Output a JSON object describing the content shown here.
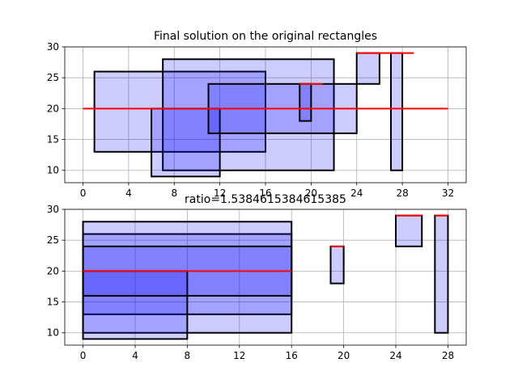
{
  "chart_data": [
    {
      "type": "rectangles",
      "title": "Final solution on the original rectangles",
      "xlim": [
        -1.6,
        33.6
      ],
      "ylim": [
        8,
        30
      ],
      "xticks": [
        0,
        4,
        8,
        12,
        16,
        20,
        24,
        28,
        32
      ],
      "yticks": [
        10,
        15,
        20,
        25,
        30
      ],
      "grid": true,
      "rects": [
        {
          "x0": 1,
          "x1": 16,
          "y0": 13,
          "y1": 26
        },
        {
          "x0": 7,
          "x1": 22,
          "y0": 10,
          "y1": 28
        },
        {
          "x0": 6,
          "x1": 12,
          "y0": 9,
          "y1": 20
        },
        {
          "x0": 11,
          "x1": 24,
          "y0": 16,
          "y1": 24
        },
        {
          "x0": 19,
          "x1": 20,
          "y0": 18,
          "y1": 24
        },
        {
          "x0": 24,
          "x1": 26,
          "y0": 24,
          "y1": 29
        },
        {
          "x0": 27,
          "x1": 28,
          "y0": 10,
          "y1": 29
        }
      ],
      "lines": [
        {
          "x0": 0,
          "x1": 32,
          "y": 20
        },
        {
          "x0": 19,
          "x1": 21,
          "y": 24
        },
        {
          "x0": 24,
          "x1": 29,
          "y": 29
        }
      ]
    },
    {
      "type": "rectangles",
      "title": "ratio=1.5384615384615385",
      "xlim": [
        -1.4,
        29.4
      ],
      "ylim": [
        8,
        30
      ],
      "xticks": [
        0,
        4,
        8,
        12,
        16,
        20,
        24,
        28
      ],
      "yticks": [
        10,
        15,
        20,
        25,
        30
      ],
      "grid": true,
      "rects": [
        {
          "x0": 0,
          "x1": 16,
          "y0": 13,
          "y1": 26
        },
        {
          "x0": 0,
          "x1": 16,
          "y0": 10,
          "y1": 28
        },
        {
          "x0": 0,
          "x1": 8,
          "y0": 9,
          "y1": 20
        },
        {
          "x0": 0,
          "x1": 16,
          "y0": 16,
          "y1": 24
        },
        {
          "x0": 19,
          "x1": 20,
          "y0": 18,
          "y1": 24
        },
        {
          "x0": 24,
          "x1": 26,
          "y0": 24,
          "y1": 29
        },
        {
          "x0": 27,
          "x1": 28,
          "y0": 10,
          "y1": 29
        }
      ],
      "lines": [
        {
          "x0": 0,
          "x1": 16,
          "y": 20
        },
        {
          "x0": 19,
          "x1": 20,
          "y": 24
        },
        {
          "x0": 24,
          "x1": 26,
          "y": 29
        },
        {
          "x0": 27,
          "x1": 28,
          "y": 29
        }
      ]
    }
  ],
  "colors": {
    "rect_fill": "#0000ff",
    "rect_fill_opacity": 0.2,
    "rect_edge": "#000000",
    "line": "#ff0000",
    "grid": "#b0b0b0"
  }
}
